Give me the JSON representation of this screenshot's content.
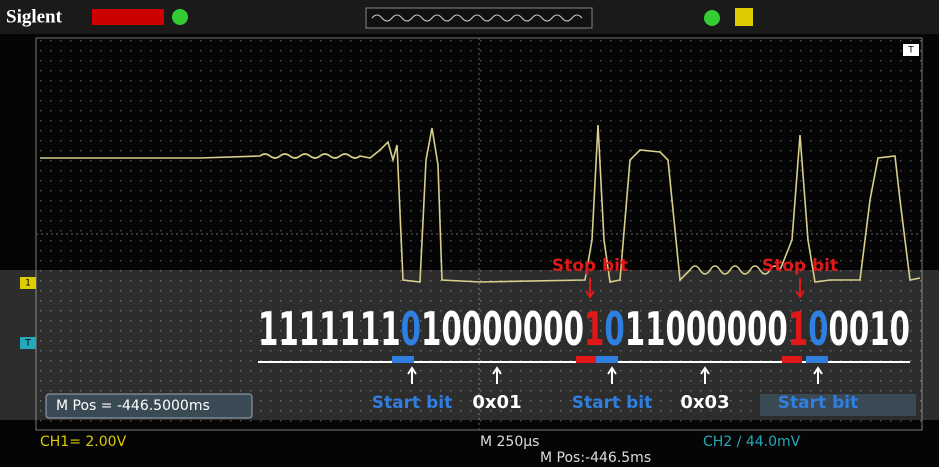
{
  "header": {
    "brand": "Siglent"
  },
  "side_markers": {
    "ch1": "1",
    "ch2": "T",
    "trigger": "T"
  },
  "annotations": {
    "stop_bits": [
      "Stop bit",
      "Stop bit"
    ],
    "start_bits": [
      "Start bit",
      "Start bit",
      "Start bit"
    ],
    "bytes": [
      "0x01",
      "0x03"
    ]
  },
  "bits": [
    {
      "text": "1111111",
      "kind": "data"
    },
    {
      "text": "0",
      "kind": "start"
    },
    {
      "text": "10000000",
      "kind": "data"
    },
    {
      "text": "1",
      "kind": "stop"
    },
    {
      "text": "0",
      "kind": "start"
    },
    {
      "text": "11000000",
      "kind": "data"
    },
    {
      "text": "1",
      "kind": "stop"
    },
    {
      "text": "0",
      "kind": "start"
    },
    {
      "text": "0010",
      "kind": "data"
    }
  ],
  "status": {
    "mpos_box": "M Pos = -446.5000ms",
    "ch1": "CH1= 2.00V",
    "timebase": "M 250µs",
    "mpos": "M Pos:-446.5ms",
    "ch2": "CH2 ∕ 44.0mV"
  }
}
